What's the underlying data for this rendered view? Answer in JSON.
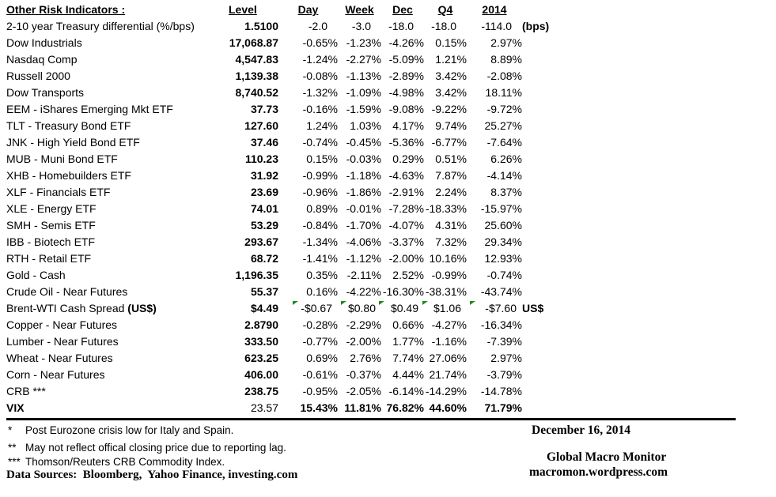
{
  "table": {
    "title": "Other Risk Indicators :",
    "columns": [
      "Level",
      "Day",
      "Week",
      "Dec",
      "Q4",
      "2014"
    ],
    "rows": [
      {
        "label": "2-10 year Treasury differential (%/bps)",
        "level": "1.5100",
        "values": [
          "-2.0",
          "-3.0",
          "-18.0",
          "-18.0",
          "-114.0"
        ],
        "note": "(bps)",
        "style": "bps"
      },
      {
        "label": "Dow Industrials",
        "level": "17,068.87",
        "values": [
          "-0.65%",
          "-1.23%",
          "-4.26%",
          "0.15%",
          "2.97%"
        ]
      },
      {
        "label": "Nasdaq Comp",
        "level": "4,547.83",
        "values": [
          "-1.24%",
          "-2.27%",
          "-5.09%",
          "1.21%",
          "8.89%"
        ]
      },
      {
        "label": "Russell 2000",
        "level": "1,139.38",
        "values": [
          "-0.08%",
          "-1.13%",
          "-2.89%",
          "3.42%",
          "-2.08%"
        ]
      },
      {
        "label": "Dow Transports",
        "level": "8,740.52",
        "values": [
          "-1.32%",
          "-1.09%",
          "-4.98%",
          "3.42%",
          "18.11%"
        ]
      },
      {
        "label": "EEM - iShares Emerging Mkt ETF",
        "level": "37.73",
        "values": [
          "-0.16%",
          "-1.59%",
          "-9.08%",
          "-9.22%",
          "-9.72%"
        ]
      },
      {
        "label": "TLT - Treasury Bond ETF",
        "level": "127.60",
        "values": [
          "1.24%",
          "1.03%",
          "4.17%",
          "9.74%",
          "25.27%"
        ]
      },
      {
        "label": "JNK - High Yield Bond ETF",
        "level": "37.46",
        "values": [
          "-0.74%",
          "-0.45%",
          "-5.36%",
          "-6.77%",
          "-7.64%"
        ]
      },
      {
        "label": "MUB - Muni Bond ETF",
        "level": "110.23",
        "values": [
          "0.15%",
          "-0.03%",
          "0.29%",
          "0.51%",
          "6.26%"
        ]
      },
      {
        "label": "XHB - Homebuilders ETF",
        "level": "31.92",
        "values": [
          "-0.99%",
          "-1.18%",
          "-4.63%",
          "7.87%",
          "-4.14%"
        ]
      },
      {
        "label": "XLF - Financials ETF",
        "level": "23.69",
        "values": [
          "-0.96%",
          "-1.86%",
          "-2.91%",
          "2.24%",
          "8.37%"
        ]
      },
      {
        "label": "XLE - Energy ETF",
        "level": "74.01",
        "values": [
          "0.89%",
          "-0.01%",
          "-7.28%",
          "-18.33%",
          "-15.97%"
        ]
      },
      {
        "label": "SMH - Semis ETF",
        "level": "53.29",
        "values": [
          "-0.84%",
          "-1.70%",
          "-4.07%",
          "4.31%",
          "25.60%"
        ]
      },
      {
        "label": "IBB - Biotech ETF",
        "level": "293.67",
        "values": [
          "-1.34%",
          "-4.06%",
          "-3.37%",
          "7.32%",
          "29.34%"
        ]
      },
      {
        "label": "RTH - Retail ETF",
        "level": "68.72",
        "values": [
          "-1.41%",
          "-1.12%",
          "-2.00%",
          "10.16%",
          "12.93%"
        ]
      },
      {
        "label": "Gold - Cash",
        "level": "1,196.35",
        "values": [
          "0.35%",
          "-2.11%",
          "2.52%",
          "-0.99%",
          "-0.74%"
        ]
      },
      {
        "label": "Crude Oil - Near Futures",
        "level": "55.37",
        "values": [
          "0.16%",
          "-4.22%",
          "-16.30%",
          "-38.31%",
          "-43.74%"
        ]
      },
      {
        "label": "Brent-WTI Cash Spread ",
        "label_bold": "(US$)",
        "level": "$4.49",
        "values": [
          "-$0.67",
          "$0.80",
          "$0.49",
          "$1.06",
          "-$7.60"
        ],
        "note": "US$",
        "style": "money",
        "flagged": true
      },
      {
        "label": "Copper - Near Futures",
        "level": "2.8790",
        "values": [
          "-0.28%",
          "-2.29%",
          "0.66%",
          "-4.27%",
          "-16.34%"
        ]
      },
      {
        "label": "Lumber - Near Futures",
        "level": "333.50",
        "values": [
          "-0.77%",
          "-2.00%",
          "1.77%",
          "-1.16%",
          "-7.39%"
        ]
      },
      {
        "label": "Wheat - Near Futures",
        "level": "623.25",
        "values": [
          "0.69%",
          "2.76%",
          "7.74%",
          "27.06%",
          "2.97%"
        ]
      },
      {
        "label": "Corn - Near Futures",
        "level": "406.00",
        "values": [
          "-0.61%",
          "-0.37%",
          "4.44%",
          "21.74%",
          "-3.79%"
        ]
      },
      {
        "label": "CRB ***",
        "level": "238.75",
        "values": [
          "-0.95%",
          "-2.05%",
          "-6.14%",
          "-14.29%",
          "-14.78%"
        ]
      },
      {
        "label": "VIX",
        "level": "23.57",
        "values": [
          "15.43%",
          "11.81%",
          "76.82%",
          "44.60%",
          "71.79%"
        ],
        "bold_label": true,
        "level_bold": false,
        "bold_values": true
      }
    ]
  },
  "footnotes": [
    {
      "marker": "*",
      "text": "Post Eurozone crisis low for Italy and Spain."
    },
    {
      "marker": "**",
      "text": "May not reflect offical closing price due to reporting lag."
    },
    {
      "marker": "***",
      "text": "Thomson/Reuters CRB Commodity Index."
    }
  ],
  "data_sources": "Data Sources:  Bloomberg,  Yahoo Finance, investing.com",
  "footer_right": {
    "date": "December 16, 2014",
    "org": "Global Macro Monitor",
    "url": "macromon.wordpress.com"
  },
  "colors": {
    "flag_green": "#1d8a1d",
    "text": "#000000",
    "background": "#ffffff"
  }
}
